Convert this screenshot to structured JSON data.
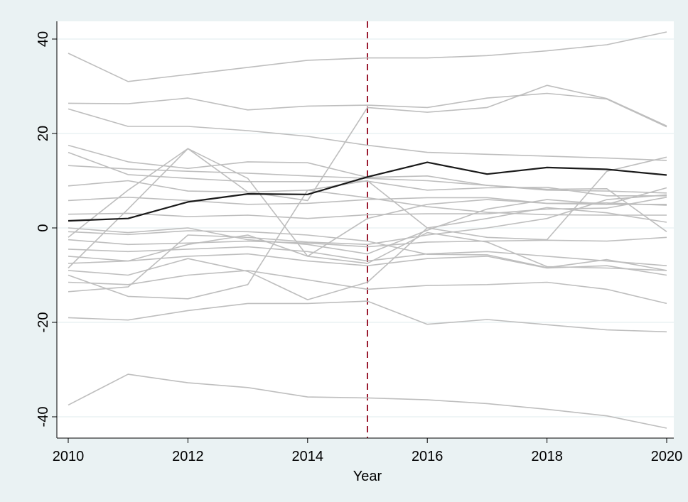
{
  "chart_data": {
    "type": "line",
    "xlabel": "Year",
    "ylabel": "",
    "xlim": [
      2010,
      2020
    ],
    "ylim": [
      -45,
      45
    ],
    "xticks": [
      2010,
      2012,
      2014,
      2016,
      2018,
      2020
    ],
    "yticks": [
      40,
      20,
      0,
      -20,
      -40
    ],
    "grid": true,
    "reference_line": {
      "x": 2015,
      "style": "dashed",
      "color": "#9b1b30"
    },
    "colors": {
      "background": "#eaf2f3",
      "plot_area": "#ffffff",
      "gridline": "#eaf2f3",
      "units": "#bebebe",
      "average": "#1a1a1a"
    },
    "x": [
      2010,
      2011,
      2012,
      2013,
      2014,
      2015,
      2016,
      2017,
      2018,
      2019,
      2020
    ],
    "series": [
      {
        "values": [
          37,
          31,
          32.5,
          34,
          35.5,
          36,
          36,
          36.5,
          37.5,
          38.8,
          41.5
        ]
      },
      {
        "values": [
          26.4,
          26.3,
          27.5,
          25,
          25.8,
          26,
          25.5,
          27.5,
          28.5,
          27.3,
          21.4
        ]
      },
      {
        "values": [
          25.2,
          21.5,
          21.5,
          20.6,
          19.4,
          17.5,
          16,
          15.6,
          15.2,
          14.8,
          14.3
        ]
      },
      {
        "values": [
          17.5,
          14,
          12.6,
          14,
          13.8,
          10.7,
          11,
          9,
          8.2,
          8.3,
          -0.8
        ]
      },
      {
        "values": [
          16,
          11.3,
          10.5,
          9.8,
          9.8,
          9.9,
          8,
          8.5,
          8.6,
          6.8,
          6.8
        ]
      },
      {
        "values": [
          13.2,
          12.5,
          12,
          11.6,
          11,
          10.5,
          10,
          9,
          8,
          7.8,
          7.4
        ]
      },
      {
        "values": [
          8.9,
          10,
          7.8,
          7.6,
          8,
          6.4,
          4.5,
          3.3,
          2.8,
          2.7,
          2.7
        ]
      },
      {
        "values": [
          5.8,
          6.5,
          5.8,
          5,
          5.2,
          6,
          6.4,
          6.4,
          5.2,
          5.3,
          4.8
        ]
      },
      {
        "values": [
          -8.5,
          4,
          16.8,
          7.6,
          5.8,
          25.5,
          24.5,
          25.5,
          30.2,
          27.4,
          21.6
        ]
      },
      {
        "values": [
          -9,
          -10,
          -6.5,
          -9.2,
          -15.2,
          -11.5,
          0,
          2,
          4.3,
          3.2,
          1.2
        ]
      },
      {
        "values": [
          -2,
          8,
          16.8,
          10.5,
          -6,
          2,
          5,
          6,
          5.2,
          5,
          8.5
        ]
      },
      {
        "values": [
          2.9,
          3.1,
          2.4,
          2.7,
          2,
          2.8,
          3,
          3,
          4,
          4.2,
          6.5
        ]
      },
      {
        "values": [
          -0.8,
          -1.4,
          -0.6,
          -0.8,
          -1.5,
          -2.8,
          -5.6,
          -5.7,
          -8.4,
          -6.7,
          -9
        ]
      },
      {
        "values": [
          -2.5,
          -3.5,
          -3.2,
          -2.8,
          -3.2,
          -4,
          -3,
          -2.8,
          -2.6,
          -2.8,
          -2
        ]
      },
      {
        "values": [
          -4.5,
          -5,
          -4.5,
          -4,
          -5,
          -7,
          -5.5,
          -5,
          -6,
          -7,
          -8
        ]
      },
      {
        "values": [
          -7.5,
          -7,
          -6,
          -5.5,
          -7,
          -8,
          -6.5,
          -6,
          -8.5,
          -8,
          -10
        ]
      },
      {
        "values": [
          -11.5,
          -12,
          -10,
          -9,
          -11,
          -13,
          -12.2,
          -12,
          -11.5,
          -13,
          -16
        ]
      },
      {
        "values": [
          -13.5,
          -12.5,
          -1.5,
          -2,
          -3,
          -3.5,
          -1.5,
          0,
          2,
          6,
          7
        ]
      },
      {
        "values": [
          -19,
          -19.5,
          -17.5,
          -16,
          -16,
          -15.5,
          -20.4,
          -19.4,
          -20.5,
          -21.6,
          -22
        ]
      },
      {
        "values": [
          -10,
          -14.5,
          -15,
          -12,
          8,
          10,
          0,
          -2,
          -2.5,
          12,
          15
        ]
      },
      {
        "values": [
          -6,
          -7,
          -3.5,
          -1.5,
          -6,
          -7.5,
          -1,
          -3,
          -8.2,
          -8.5,
          -9
        ]
      },
      {
        "values": [
          0,
          -1,
          0,
          -2.5,
          -3.5,
          -5.5,
          -0.5,
          4,
          6,
          5,
          5
        ]
      },
      {
        "values": [
          -37.5,
          -31,
          -32.8,
          -33.8,
          -35.8,
          -36,
          -36.4,
          -37.2,
          -38.4,
          -39.8,
          -42.4
        ]
      }
    ],
    "highlight_series": {
      "values": [
        1.5,
        2,
        5.5,
        7.2,
        7.1,
        10.8,
        13.9,
        11.4,
        12.8,
        12.4,
        11.2
      ]
    }
  }
}
